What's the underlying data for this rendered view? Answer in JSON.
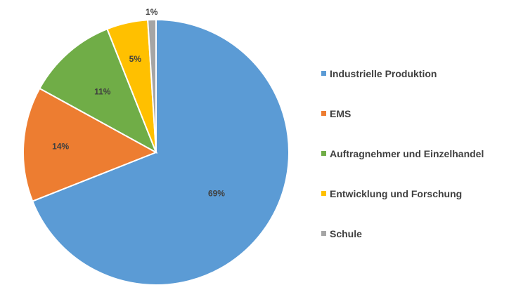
{
  "chart_data": {
    "type": "pie",
    "title": "",
    "slices": [
      {
        "label": "Industrielle Produktion",
        "value": 69,
        "value_label": "69%",
        "color": "#5B9BD5"
      },
      {
        "label": "EMS",
        "value": 14,
        "value_label": "14%",
        "color": "#ED7D31"
      },
      {
        "label": "Auftragnehmer und Einzelhandel",
        "value": 11,
        "value_label": "11%",
        "color": "#70AD47"
      },
      {
        "label": "Entwicklung und Forschung",
        "value": 5,
        "value_label": "5%",
        "color": "#FFC000"
      },
      {
        "label": "Schule",
        "value": 1,
        "value_label": "1%",
        "color": "#A5A5A5"
      }
    ],
    "legend_position": "right",
    "start_angle": "12 o'clock, clockwise"
  }
}
